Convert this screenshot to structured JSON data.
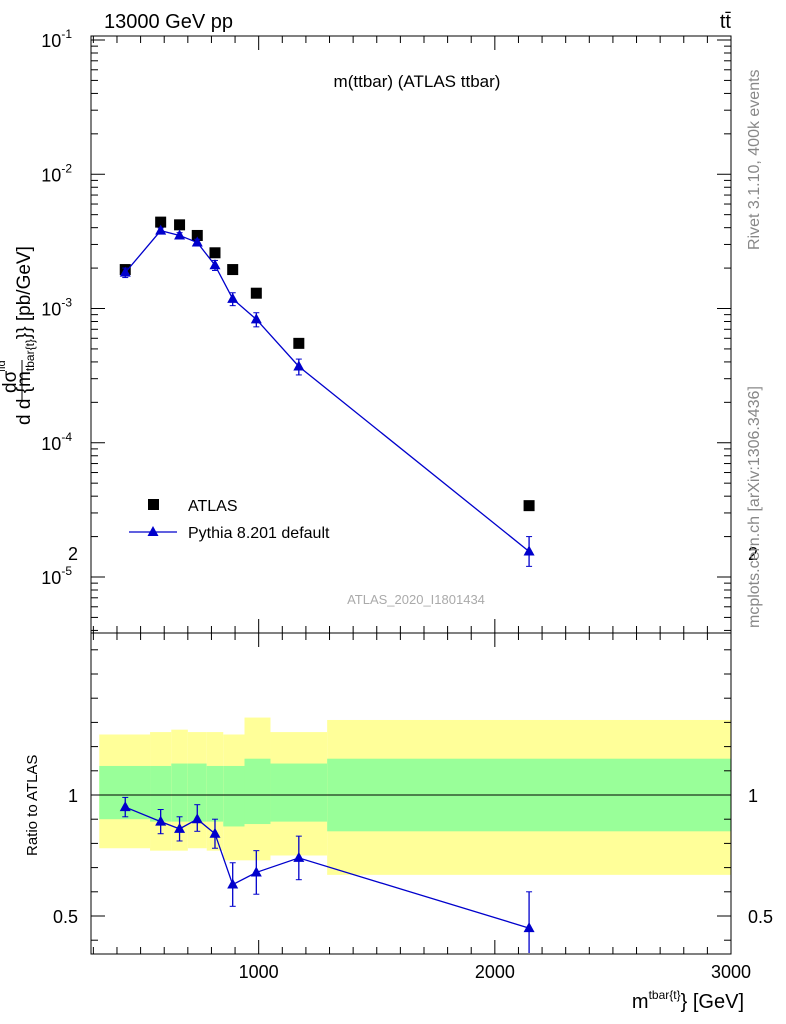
{
  "header": {
    "energy_label": "13000 GeV pp",
    "process_label": "tt̄"
  },
  "side_text": {
    "rivet": "Rivet 3.1.10,  400k events",
    "mcplots": "mcplots.cern.ch [arXiv:1306.3436]"
  },
  "chart_data": [
    {
      "type": "scatter",
      "title": "m(ttbar) (ATLAS ttbar)",
      "watermark": "ATLAS_2020_I1801434",
      "ylabel": "d dσ^fid / d {m^{tbar{t}}} [pb/GeV]",
      "xlabel": "m^{tbar{t}} [GeV]",
      "yscale": "log",
      "xlim": [
        290,
        3000
      ],
      "ylim": [
        3e-06,
        0.1
      ],
      "y_tick_labels": [
        "10^-5",
        "10^-4",
        "10^-3",
        "10^-2",
        "10^-1"
      ],
      "legend": {
        "position": "lower-left"
      },
      "series": [
        {
          "name": "ATLAS",
          "marker": "square",
          "color": "#000000",
          "x": [
            435,
            585,
            665,
            740,
            815,
            890,
            990,
            1170,
            2145
          ],
          "y": [
            0.00195,
            0.0044,
            0.0042,
            0.0035,
            0.0026,
            0.00195,
            0.0013,
            0.00055,
            3.4e-05
          ]
        },
        {
          "name": "Pythia 8.201 default",
          "marker": "triangle",
          "color": "#0000cc",
          "x": [
            435,
            585,
            665,
            740,
            815,
            890,
            990,
            1170,
            2145
          ],
          "y": [
            0.00185,
            0.0038,
            0.0035,
            0.0031,
            0.0021,
            0.00118,
            0.00083,
            0.00037,
            1.55e-05
          ],
          "yerr_low": [
            0.00015,
            0.00018,
            0.00017,
            0.00018,
            0.00018,
            0.00013,
            0.0001,
            5e-05,
            3.5e-06
          ],
          "yerr_high": [
            0.00015,
            0.00018,
            0.00017,
            0.00018,
            0.00018,
            0.00013,
            0.0001,
            5e-05,
            4.5e-06
          ]
        }
      ]
    },
    {
      "type": "scatter",
      "ylabel": "Ratio to ATLAS",
      "xlabel": "m^{tbar{t}} [GeV]",
      "xlim": [
        290,
        3000
      ],
      "ylim": [
        0.34,
        2.3
      ],
      "x_ticks": [
        1000,
        2000,
        3000
      ],
      "y_ticks": [
        0.5,
        1,
        2
      ],
      "bands": [
        {
          "x0": 325,
          "x1": 540,
          "stat_lo": 0.9,
          "stat_hi": 1.12,
          "tot_lo": 0.78,
          "tot_hi": 1.25
        },
        {
          "x0": 540,
          "x1": 630,
          "stat_lo": 0.89,
          "stat_hi": 1.12,
          "tot_lo": 0.77,
          "tot_hi": 1.26
        },
        {
          "x0": 630,
          "x1": 700,
          "stat_lo": 0.89,
          "stat_hi": 1.13,
          "tot_lo": 0.77,
          "tot_hi": 1.27
        },
        {
          "x0": 700,
          "x1": 780,
          "stat_lo": 0.89,
          "stat_hi": 1.13,
          "tot_lo": 0.78,
          "tot_hi": 1.26
        },
        {
          "x0": 780,
          "x1": 850,
          "stat_lo": 0.89,
          "stat_hi": 1.12,
          "tot_lo": 0.77,
          "tot_hi": 1.26
        },
        {
          "x0": 850,
          "x1": 940,
          "stat_lo": 0.87,
          "stat_hi": 1.12,
          "tot_lo": 0.73,
          "tot_hi": 1.25
        },
        {
          "x0": 940,
          "x1": 1050,
          "stat_lo": 0.88,
          "stat_hi": 1.15,
          "tot_lo": 0.73,
          "tot_hi": 1.32
        },
        {
          "x0": 1050,
          "x1": 1290,
          "stat_lo": 0.89,
          "stat_hi": 1.13,
          "tot_lo": 0.75,
          "tot_hi": 1.26
        },
        {
          "x0": 1290,
          "x1": 3000,
          "stat_lo": 0.85,
          "stat_hi": 1.15,
          "tot_lo": 0.67,
          "tot_hi": 1.31
        }
      ],
      "series": [
        {
          "name": "Pythia 8.201 default",
          "color": "#0000cc",
          "x": [
            435,
            585,
            665,
            740,
            815,
            890,
            990,
            1170,
            2145
          ],
          "y": [
            0.95,
            0.89,
            0.86,
            0.9,
            0.84,
            0.63,
            0.68,
            0.74,
            0.45
          ],
          "yerr_low": [
            0.04,
            0.05,
            0.05,
            0.05,
            0.06,
            0.09,
            0.09,
            0.09,
            0.12
          ],
          "yerr_high": [
            0.04,
            0.05,
            0.05,
            0.06,
            0.06,
            0.09,
            0.09,
            0.09,
            0.15
          ]
        }
      ]
    }
  ]
}
